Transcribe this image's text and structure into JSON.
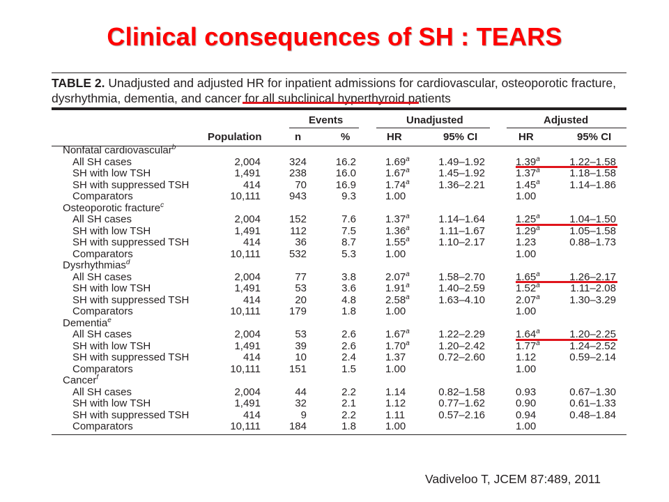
{
  "slide": {
    "title": "Clinical consequences of SH : TEARS",
    "citation": "Vadiveloo T, JCEM 87:489, 2011"
  },
  "table": {
    "caption_label": "TABLE 2.",
    "caption_line1": "Unadjusted and adjusted HR for inpatient admissions for cardiovascular, osteoporotic fracture,",
    "caption_line2_pre": "dysrhythmia, dementia, and cancer for ",
    "caption_line2_underlined": "all subclinical hyperthyroid patients",
    "headers": {
      "events": "Events",
      "unadjusted": "Unadjusted",
      "adjusted": "Adjusted",
      "population": "Population",
      "n": "n",
      "pct": "%",
      "hr": "HR",
      "ci": "95% CI"
    },
    "groups": [
      {
        "name": "Nonfatal cardiovascular",
        "sup": "b",
        "rows": [
          {
            "label": "All SH cases",
            "population": "2,004",
            "n": "324",
            "pct": "16.2",
            "uhr": "1.69",
            "uhr_sup": "a",
            "uci": "1.49–1.92",
            "ahr": "1.39",
            "ahr_sup": "a",
            "aci": "1.22–1.58"
          },
          {
            "label": "SH with low TSH",
            "population": "1,491",
            "n": "238",
            "pct": "16.0",
            "uhr": "1.67",
            "uhr_sup": "a",
            "uci": "1.45–1.92",
            "ahr": "1.37",
            "ahr_sup": "a",
            "aci": "1.18–1.58"
          },
          {
            "label": "SH with suppressed TSH",
            "population": "414",
            "n": "70",
            "pct": "16.9",
            "uhr": "1.74",
            "uhr_sup": "a",
            "uci": "1.36–2.21",
            "ahr": "1.45",
            "ahr_sup": "a",
            "aci": "1.14–1.86"
          },
          {
            "label": "Comparators",
            "population": "10,111",
            "n": "943",
            "pct": "9.3",
            "uhr": "1.00",
            "uhr_sup": "",
            "uci": "",
            "ahr": "1.00",
            "ahr_sup": "",
            "aci": ""
          }
        ]
      },
      {
        "name": "Osteoporotic fracture",
        "sup": "c",
        "rows": [
          {
            "label": "All SH cases",
            "population": "2,004",
            "n": "152",
            "pct": "7.6",
            "uhr": "1.37",
            "uhr_sup": "a",
            "uci": "1.14–1.64",
            "ahr": "1.25",
            "ahr_sup": "a",
            "aci": "1.04–1.50"
          },
          {
            "label": "SH with low TSH",
            "population": "1,491",
            "n": "112",
            "pct": "7.5",
            "uhr": "1.36",
            "uhr_sup": "a",
            "uci": "1.11–1.67",
            "ahr": "1.29",
            "ahr_sup": "a",
            "aci": "1.05–1.58"
          },
          {
            "label": "SH with suppressed TSH",
            "population": "414",
            "n": "36",
            "pct": "8.7",
            "uhr": "1.55",
            "uhr_sup": "a",
            "uci": "1.10–2.17",
            "ahr": "1.23",
            "ahr_sup": "",
            "aci": "0.88–1.73"
          },
          {
            "label": "Comparators",
            "population": "10,111",
            "n": "532",
            "pct": "5.3",
            "uhr": "1.00",
            "uhr_sup": "",
            "uci": "",
            "ahr": "1.00",
            "ahr_sup": "",
            "aci": ""
          }
        ]
      },
      {
        "name": "Dysrhythmias",
        "sup": "d",
        "rows": [
          {
            "label": "All SH cases",
            "population": "2,004",
            "n": "77",
            "pct": "3.8",
            "uhr": "2.07",
            "uhr_sup": "a",
            "uci": "1.58–2.70",
            "ahr": "1.65",
            "ahr_sup": "a",
            "aci": "1.26–2.17"
          },
          {
            "label": "SH with low TSH",
            "population": "1,491",
            "n": "53",
            "pct": "3.6",
            "uhr": "1.91",
            "uhr_sup": "a",
            "uci": "1.40–2.59",
            "ahr": "1.52",
            "ahr_sup": "a",
            "aci": "1.11–2.08"
          },
          {
            "label": "SH with suppressed TSH",
            "population": "414",
            "n": "20",
            "pct": "4.8",
            "uhr": "2.58",
            "uhr_sup": "a",
            "uci": "1.63–4.10",
            "ahr": "2.07",
            "ahr_sup": "a",
            "aci": "1.30–3.29"
          },
          {
            "label": "Comparators",
            "population": "10,111",
            "n": "179",
            "pct": "1.8",
            "uhr": "1.00",
            "uhr_sup": "",
            "uci": "",
            "ahr": "1.00",
            "ahr_sup": "",
            "aci": ""
          }
        ]
      },
      {
        "name": "Dementia",
        "sup": "e",
        "rows": [
          {
            "label": "All SH cases",
            "population": "2,004",
            "n": "53",
            "pct": "2.6",
            "uhr": "1.67",
            "uhr_sup": "a",
            "uci": "1.22–2.29",
            "ahr": "1.64",
            "ahr_sup": "a",
            "aci": "1.20–2.25"
          },
          {
            "label": "SH with low TSH",
            "population": "1,491",
            "n": "39",
            "pct": "2.6",
            "uhr": "1.70",
            "uhr_sup": "a",
            "uci": "1.20–2.42",
            "ahr": "1.77",
            "ahr_sup": "a",
            "aci": "1.24–2.52"
          },
          {
            "label": "SH with suppressed TSH",
            "population": "414",
            "n": "10",
            "pct": "2.4",
            "uhr": "1.37",
            "uhr_sup": "",
            "uci": "0.72–2.60",
            "ahr": "1.12",
            "ahr_sup": "",
            "aci": "0.59–2.14"
          },
          {
            "label": "Comparators",
            "population": "10,111",
            "n": "151",
            "pct": "1.5",
            "uhr": "1.00",
            "uhr_sup": "",
            "uci": "",
            "ahr": "1.00",
            "ahr_sup": "",
            "aci": ""
          }
        ]
      },
      {
        "name": "Cancer",
        "sup": "f",
        "rows": [
          {
            "label": "All SH cases",
            "population": "2,004",
            "n": "44",
            "pct": "2.2",
            "uhr": "1.14",
            "uhr_sup": "",
            "uci": "0.82–1.58",
            "ahr": "0.93",
            "ahr_sup": "",
            "aci": "0.67–1.30"
          },
          {
            "label": "SH with low TSH",
            "population": "1,491",
            "n": "32",
            "pct": "2.1",
            "uhr": "1.12",
            "uhr_sup": "",
            "uci": "0.77–1.62",
            "ahr": "0.90",
            "ahr_sup": "",
            "aci": "0.61–1.33"
          },
          {
            "label": "SH with suppressed TSH",
            "population": "414",
            "n": "9",
            "pct": "2.2",
            "uhr": "1.11",
            "uhr_sup": "",
            "uci": "0.57–2.16",
            "ahr": "0.94",
            "ahr_sup": "",
            "aci": "0.48–1.84"
          },
          {
            "label": "Comparators",
            "population": "10,111",
            "n": "184",
            "pct": "1.8",
            "uhr": "1.00",
            "uhr_sup": "",
            "uci": "",
            "ahr": "1.00",
            "ahr_sup": "",
            "aci": ""
          }
        ]
      }
    ]
  },
  "colors": {
    "title": "#ff0000",
    "highlight": "#e0141c",
    "text": "#231f20"
  }
}
